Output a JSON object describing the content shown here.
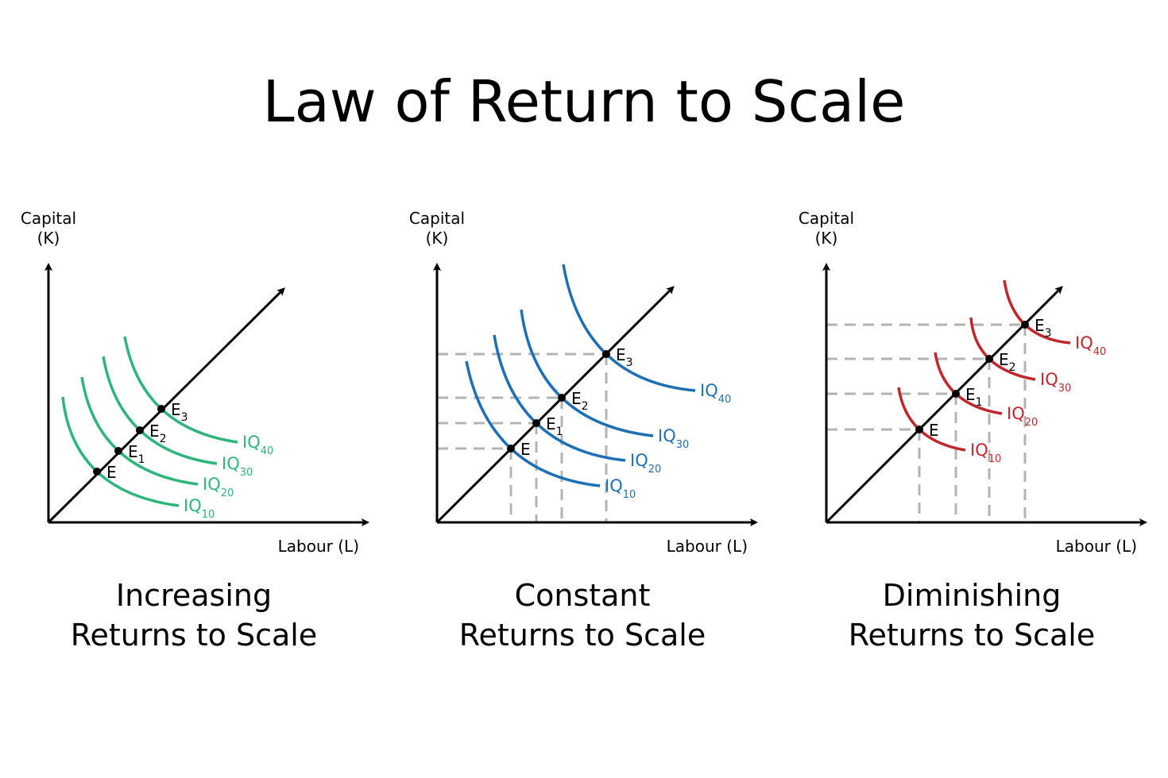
{
  "title": "Law of Return to Scale",
  "chart_data": [
    {
      "type": "diagram",
      "y_axis_label": [
        "Capital",
        "(K)"
      ],
      "x_axis_label": "Labour (L)",
      "caption": [
        "Increasing",
        "Returns to Scale"
      ],
      "color": "#2db57a",
      "guides": false,
      "curves": [
        {
          "base": "IQ",
          "sub": "10"
        },
        {
          "base": "IQ",
          "sub": "20"
        },
        {
          "base": "IQ",
          "sub": "30"
        },
        {
          "base": "IQ",
          "sub": "40"
        }
      ],
      "points": [
        {
          "base": "E",
          "sub": ""
        },
        {
          "base": "E",
          "sub": "1"
        },
        {
          "base": "E",
          "sub": "2"
        },
        {
          "base": "E",
          "sub": "3"
        }
      ]
    },
    {
      "type": "diagram",
      "y_axis_label": [
        "Capital",
        "(K)"
      ],
      "x_axis_label": "Labour (L)",
      "caption": [
        "Constant",
        "Returns to Scale"
      ],
      "color": "#1f6fb5",
      "guides": true,
      "curves": [
        {
          "base": "IQ",
          "sub": "10"
        },
        {
          "base": "IQ",
          "sub": "20"
        },
        {
          "base": "IQ",
          "sub": "30"
        },
        {
          "base": "IQ",
          "sub": "40"
        }
      ],
      "points": [
        {
          "base": "E",
          "sub": ""
        },
        {
          "base": "E",
          "sub": "1"
        },
        {
          "base": "E",
          "sub": "2"
        },
        {
          "base": "E",
          "sub": "3"
        }
      ]
    },
    {
      "type": "diagram",
      "y_axis_label": [
        "Capital",
        "(K)"
      ],
      "x_axis_label": "Labour (L)",
      "caption": [
        "Diminishing",
        "Returns to Scale"
      ],
      "color": "#c0272d",
      "guides": true,
      "curves": [
        {
          "base": "IQ",
          "sub": "10"
        },
        {
          "base": "IQ",
          "sub": "20"
        },
        {
          "base": "IQ",
          "sub": "30"
        },
        {
          "base": "IQ",
          "sub": "40"
        }
      ],
      "points": [
        {
          "base": "E",
          "sub": ""
        },
        {
          "base": "E",
          "sub": "1"
        },
        {
          "base": "E",
          "sub": "2"
        },
        {
          "base": "E",
          "sub": "3"
        }
      ]
    }
  ]
}
